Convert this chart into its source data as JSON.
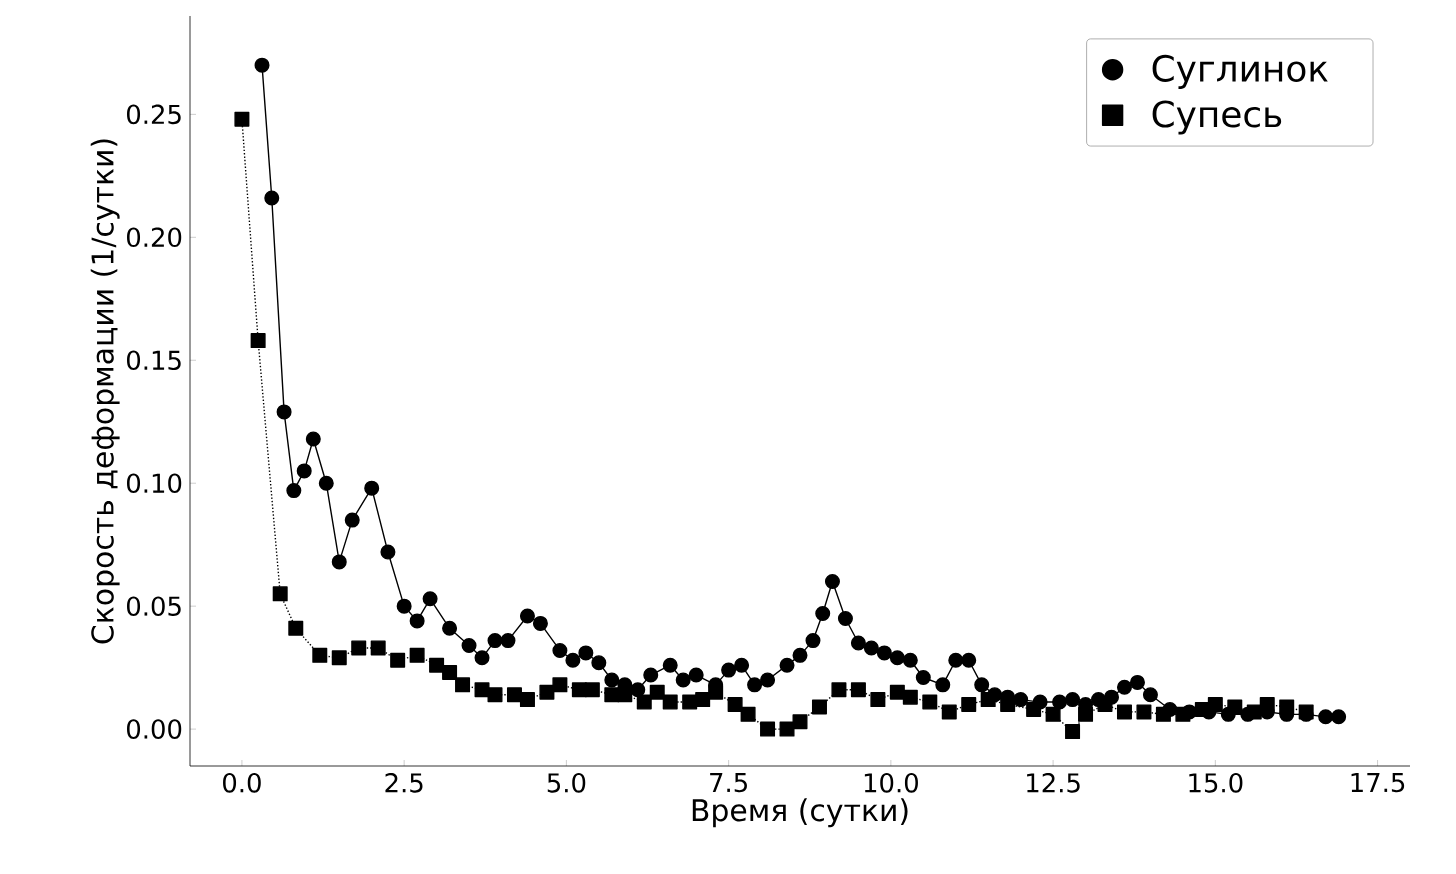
{
  "chart_data": {
    "type": "line",
    "xlabel": "Время (сутки)",
    "ylabel": "Скорость деформации (1/сутки)",
    "xlim": [
      -0.8,
      18.0
    ],
    "ylim": [
      -0.015,
      0.29
    ],
    "xticks": [
      {
        "value": 0,
        "label": "0.0"
      },
      {
        "value": 2.5,
        "label": "2.5"
      },
      {
        "value": 5,
        "label": "5.0"
      },
      {
        "value": 7.5,
        "label": "7.5"
      },
      {
        "value": 10,
        "label": "10.0"
      },
      {
        "value": 12.5,
        "label": "12.5"
      },
      {
        "value": 15,
        "label": "15.0"
      },
      {
        "value": 17.5,
        "label": "17.5"
      }
    ],
    "yticks": [
      {
        "value": 0,
        "label": "0.00"
      },
      {
        "value": 0.05,
        "label": "0.05"
      },
      {
        "value": 0.1,
        "label": "0.10"
      },
      {
        "value": 0.15,
        "label": "0.15"
      },
      {
        "value": 0.2,
        "label": "0.20"
      },
      {
        "value": 0.25,
        "label": "0.25"
      }
    ],
    "grid": false,
    "legend": "top right",
    "series": [
      {
        "name": "Суглинок",
        "color": "#000000",
        "marker": "circle",
        "line_style": "solid",
        "x": [
          0.31,
          0.46,
          0.65,
          0.8,
          0.96,
          1.1,
          1.3,
          1.5,
          1.7,
          2.0,
          2.25,
          2.5,
          2.7,
          2.9,
          3.2,
          3.5,
          3.7,
          3.9,
          4.1,
          4.4,
          4.6,
          4.9,
          5.1,
          5.3,
          5.5,
          5.7,
          5.9,
          6.1,
          6.3,
          6.6,
          6.8,
          7.0,
          7.3,
          7.5,
          7.7,
          7.9,
          8.1,
          8.4,
          8.6,
          8.8,
          8.95,
          9.1,
          9.3,
          9.5,
          9.7,
          9.9,
          10.1,
          10.3,
          10.5,
          10.8,
          11.0,
          11.2,
          11.4,
          11.6,
          11.8,
          12.0,
          12.3,
          12.6,
          12.8,
          13.0,
          13.2,
          13.4,
          13.6,
          13.8,
          14.0,
          14.3,
          14.6,
          14.9,
          15.2,
          15.5,
          15.8,
          16.1,
          16.4,
          16.7,
          16.9
        ],
        "values": [
          0.27,
          0.216,
          0.129,
          0.097,
          0.105,
          0.118,
          0.1,
          0.068,
          0.085,
          0.098,
          0.072,
          0.05,
          0.044,
          0.053,
          0.041,
          0.034,
          0.029,
          0.036,
          0.036,
          0.046,
          0.043,
          0.032,
          0.028,
          0.031,
          0.027,
          0.02,
          0.018,
          0.016,
          0.022,
          0.026,
          0.02,
          0.022,
          0.018,
          0.024,
          0.026,
          0.018,
          0.02,
          0.026,
          0.03,
          0.036,
          0.047,
          0.06,
          0.045,
          0.035,
          0.033,
          0.031,
          0.029,
          0.028,
          0.021,
          0.018,
          0.028,
          0.028,
          0.018,
          0.014,
          0.013,
          0.012,
          0.011,
          0.011,
          0.012,
          0.01,
          0.012,
          0.013,
          0.017,
          0.019,
          0.014,
          0.008,
          0.007,
          0.007,
          0.006,
          0.006,
          0.007,
          0.006,
          0.006,
          0.005,
          0.005
        ]
      },
      {
        "name": "Супесь",
        "color": "#000000",
        "marker": "square",
        "line_style": "dotted",
        "x": [
          0.0,
          0.25,
          0.59,
          0.83,
          1.2,
          1.5,
          1.8,
          2.1,
          2.4,
          2.7,
          3.0,
          3.2,
          3.4,
          3.7,
          3.9,
          4.2,
          4.4,
          4.7,
          4.9,
          5.2,
          5.4,
          5.7,
          5.9,
          6.2,
          6.4,
          6.6,
          6.9,
          7.1,
          7.3,
          7.6,
          7.8,
          8.1,
          8.4,
          8.6,
          8.9,
          9.2,
          9.5,
          9.8,
          10.1,
          10.3,
          10.6,
          10.9,
          11.2,
          11.5,
          11.8,
          12.2,
          12.5,
          12.8,
          13.0,
          13.3,
          13.6,
          13.9,
          14.2,
          14.5,
          14.8,
          15.0,
          15.3,
          15.6,
          15.8,
          16.1,
          16.4
        ],
        "values": [
          0.248,
          0.158,
          0.055,
          0.041,
          0.03,
          0.029,
          0.033,
          0.033,
          0.028,
          0.03,
          0.026,
          0.023,
          0.018,
          0.016,
          0.014,
          0.014,
          0.012,
          0.015,
          0.018,
          0.016,
          0.016,
          0.014,
          0.014,
          0.011,
          0.015,
          0.011,
          0.011,
          0.012,
          0.015,
          0.01,
          0.006,
          0.0,
          0.0,
          0.003,
          0.009,
          0.016,
          0.016,
          0.012,
          0.015,
          0.013,
          0.011,
          0.007,
          0.01,
          0.012,
          0.01,
          0.008,
          0.006,
          -0.001,
          0.006,
          0.01,
          0.007,
          0.007,
          0.006,
          0.006,
          0.008,
          0.01,
          0.009,
          0.007,
          0.01,
          0.009,
          0.007
        ]
      }
    ]
  }
}
